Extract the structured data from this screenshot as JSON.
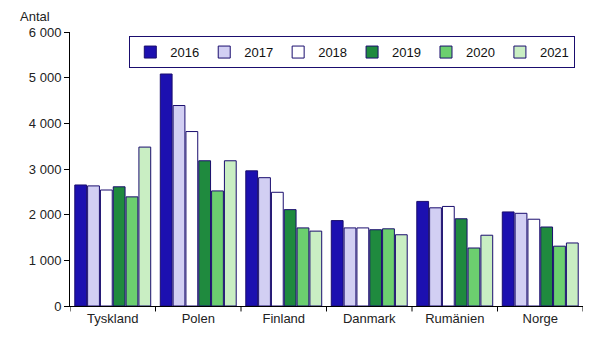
{
  "chart_data": {
    "type": "bar",
    "y_label": "Antal",
    "categories": [
      "Tyskland",
      "Polen",
      "Finland",
      "Danmark",
      "Rumänien",
      "Norge"
    ],
    "series": [
      {
        "name": "2016",
        "color": "#1c10b0",
        "values": [
          2650,
          5080,
          2960,
          1870,
          2290,
          2060
        ]
      },
      {
        "name": "2017",
        "color": "#d2cff3",
        "values": [
          2630,
          4390,
          2810,
          1710,
          2150,
          2030
        ]
      },
      {
        "name": "2018",
        "color": "#ffffff",
        "values": [
          2540,
          3820,
          2490,
          1710,
          2180,
          1900
        ]
      },
      {
        "name": "2019",
        "color": "#1f8a3e",
        "values": [
          2610,
          3180,
          2110,
          1670,
          1910,
          1730
        ]
      },
      {
        "name": "2020",
        "color": "#6ccf6f",
        "values": [
          2390,
          2520,
          1710,
          1690,
          1270,
          1310
        ]
      },
      {
        "name": "2021",
        "color": "#c9eec3",
        "values": [
          3480,
          3180,
          1640,
          1560,
          1550,
          1380
        ]
      }
    ],
    "ylim": [
      0,
      6000
    ],
    "yticks": [
      0,
      {
        "value": 1000,
        "label": "1 000"
      },
      {
        "value": 2000,
        "label": "2 000"
      },
      {
        "value": 3000,
        "label": "3 000"
      },
      {
        "value": 4000,
        "label": "4 000"
      },
      {
        "value": 5000,
        "label": "5 000"
      },
      {
        "value": 6000,
        "label": "6 000"
      }
    ],
    "grid": false,
    "legend": "top-right"
  }
}
